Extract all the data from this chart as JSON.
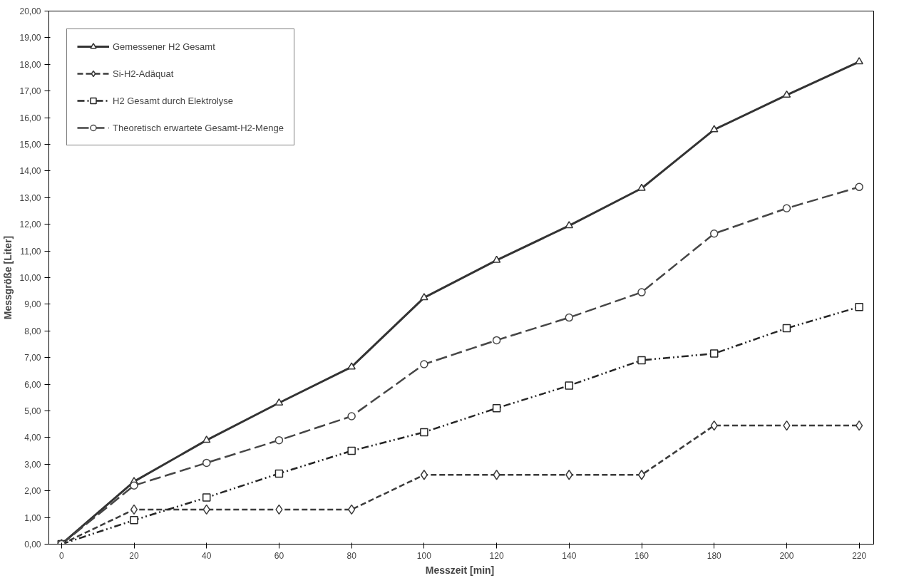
{
  "chart_data": {
    "type": "line",
    "xlabel": "Messzeit  [min]",
    "ylabel": "Messgröße [Liter]",
    "x": [
      0,
      20,
      40,
      60,
      80,
      100,
      120,
      140,
      160,
      180,
      200,
      220
    ],
    "xlim": [
      -3.5,
      224
    ],
    "xticks": [
      0,
      20,
      40,
      60,
      80,
      100,
      120,
      140,
      160,
      180,
      200,
      220
    ],
    "ylim": [
      0,
      20
    ],
    "yticks": [
      {
        "value": 0,
        "label": "0,00"
      },
      {
        "value": 1,
        "label": "1,00"
      },
      {
        "value": 2,
        "label": "2,00"
      },
      {
        "value": 3,
        "label": "3,00"
      },
      {
        "value": 4,
        "label": "4,00"
      },
      {
        "value": 5,
        "label": "5,00"
      },
      {
        "value": 6,
        "label": "6,00"
      },
      {
        "value": 7,
        "label": "7,00"
      },
      {
        "value": 8,
        "label": "8,00"
      },
      {
        "value": 9,
        "label": "9,00"
      },
      {
        "value": 10,
        "label": "10,00"
      },
      {
        "value": 11,
        "label": "11,00"
      },
      {
        "value": 12,
        "label": "12,00"
      },
      {
        "value": 13,
        "label": "13,00"
      },
      {
        "value": 14,
        "label": "14,00"
      },
      {
        "value": 15,
        "label": "15,00"
      },
      {
        "value": 16,
        "label": "16,00"
      },
      {
        "value": 17,
        "label": "17,00"
      },
      {
        "value": 18,
        "label": "18,00"
      },
      {
        "value": 19,
        "label": "19,00"
      },
      {
        "value": 20,
        "label": "20,00"
      }
    ],
    "grid": false,
    "legend": "top left",
    "series": [
      {
        "name": "Gemessener H2 Gesamt",
        "color": "#333333",
        "marker": "triangle",
        "line_style": "solid",
        "values": [
          0,
          2.35,
          3.9,
          5.3,
          6.65,
          9.25,
          10.65,
          11.95,
          13.35,
          15.55,
          16.85,
          18.1
        ]
      },
      {
        "name": "Si-H2-Adäquat",
        "color": "#3c3c3c",
        "marker": "diamond",
        "line_style": "dashed",
        "values": [
          0,
          1.3,
          1.3,
          1.3,
          1.3,
          2.6,
          2.6,
          2.6,
          2.6,
          4.45,
          4.45,
          4.45
        ]
      },
      {
        "name": "H2 Gesamt durch Elektrolyse",
        "color": "#262626",
        "marker": "square",
        "line_style": "dashdot",
        "values": [
          0,
          0.9,
          1.75,
          2.65,
          3.5,
          4.2,
          5.1,
          5.95,
          6.9,
          7.15,
          8.1,
          8.9
        ]
      },
      {
        "name": "Theoretisch erwartete Gesamt-H2-Menge",
        "color": "#464646",
        "marker": "circle",
        "line_style": "longdash",
        "values": [
          0,
          2.2,
          3.05,
          3.9,
          4.8,
          6.75,
          7.65,
          8.5,
          9.45,
          11.65,
          12.6,
          13.4
        ]
      }
    ]
  }
}
